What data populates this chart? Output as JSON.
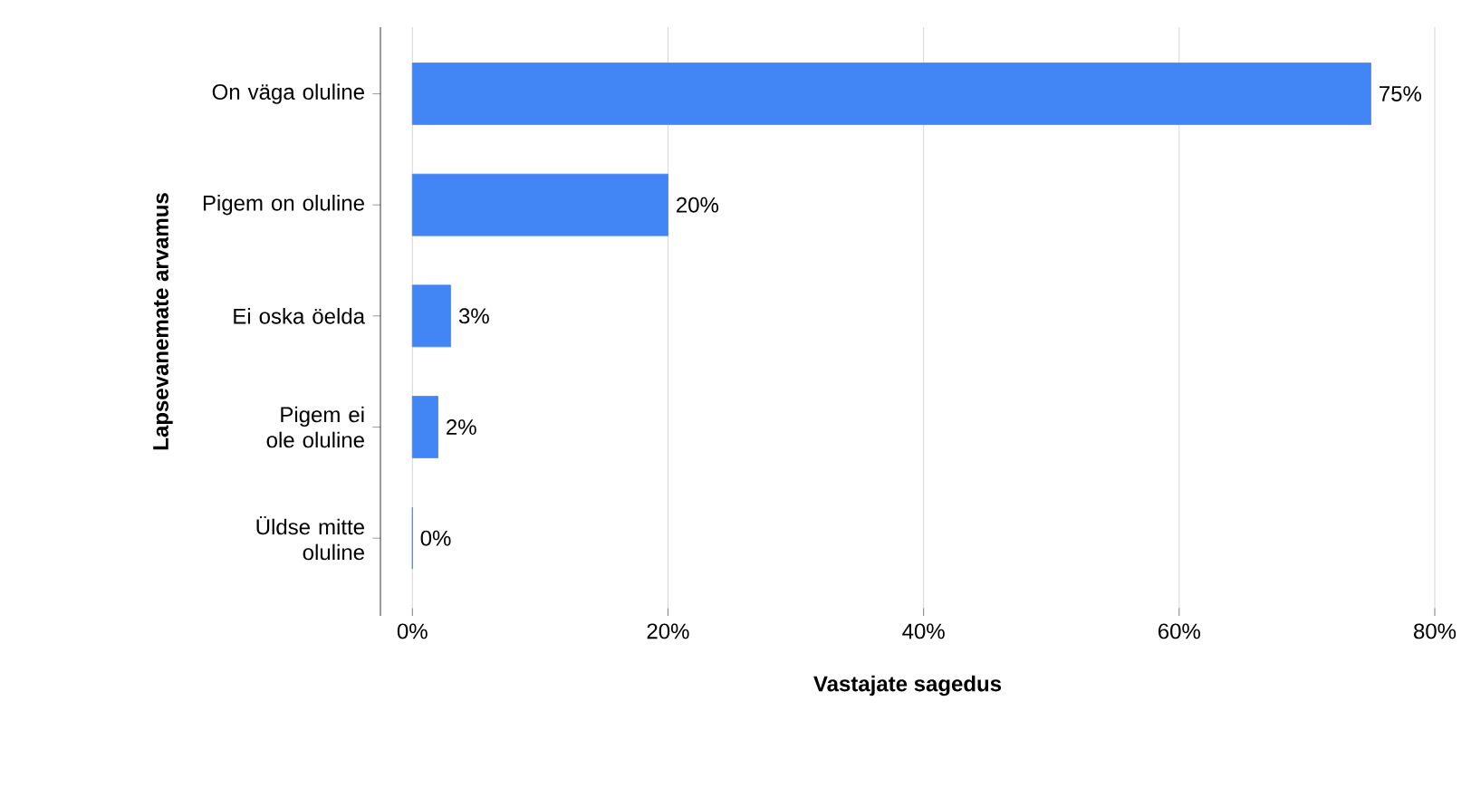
{
  "chart_data": {
    "type": "bar",
    "orientation": "horizontal",
    "xlabel": "Vastajate sagedus",
    "ylabel": "Lapsevanemate arvamus",
    "categories": [
      "On väga oluline",
      "Pigem on oluline",
      "Ei oska öelda",
      "Pigem ei ole oluline",
      "Üldse mitte oluline"
    ],
    "values": [
      75,
      20,
      3,
      2,
      0
    ],
    "value_labels": [
      "75%",
      "20%",
      "3%",
      "2%",
      "0%"
    ],
    "color": "#4285f4",
    "xlim": [
      -2.5,
      80
    ],
    "xticks": [
      {
        "value": 0,
        "label": "0%"
      },
      {
        "value": 20,
        "label": "20%"
      },
      {
        "value": 40,
        "label": "40%"
      },
      {
        "value": 60,
        "label": "60%"
      },
      {
        "value": 80,
        "label": "80%"
      }
    ],
    "grid": "x"
  }
}
